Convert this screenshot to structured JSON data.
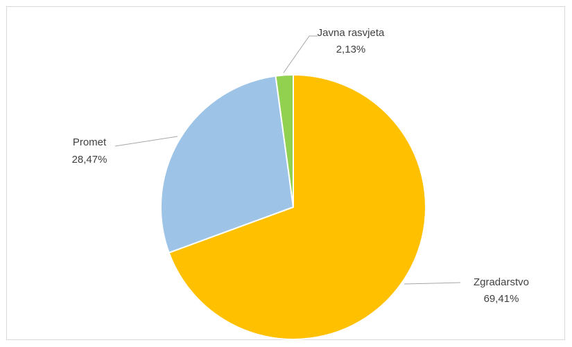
{
  "chart_data": {
    "type": "pie",
    "title": "",
    "slices": [
      {
        "name": "Zgradarstvo",
        "value": 69.41,
        "label": "69,41%",
        "color": "#FFC000"
      },
      {
        "name": "Promet",
        "value": 28.47,
        "label": "28,47%",
        "color": "#9DC3E6"
      },
      {
        "name": "Javna rasvjeta",
        "value": 2.13,
        "label": "2,13%",
        "color": "#92D050"
      }
    ],
    "start_angle_deg": 0,
    "direction": "clockwise",
    "legend": "none",
    "leader_line_color": "#a6a6a6",
    "slice_border_color": "#ffffff"
  }
}
